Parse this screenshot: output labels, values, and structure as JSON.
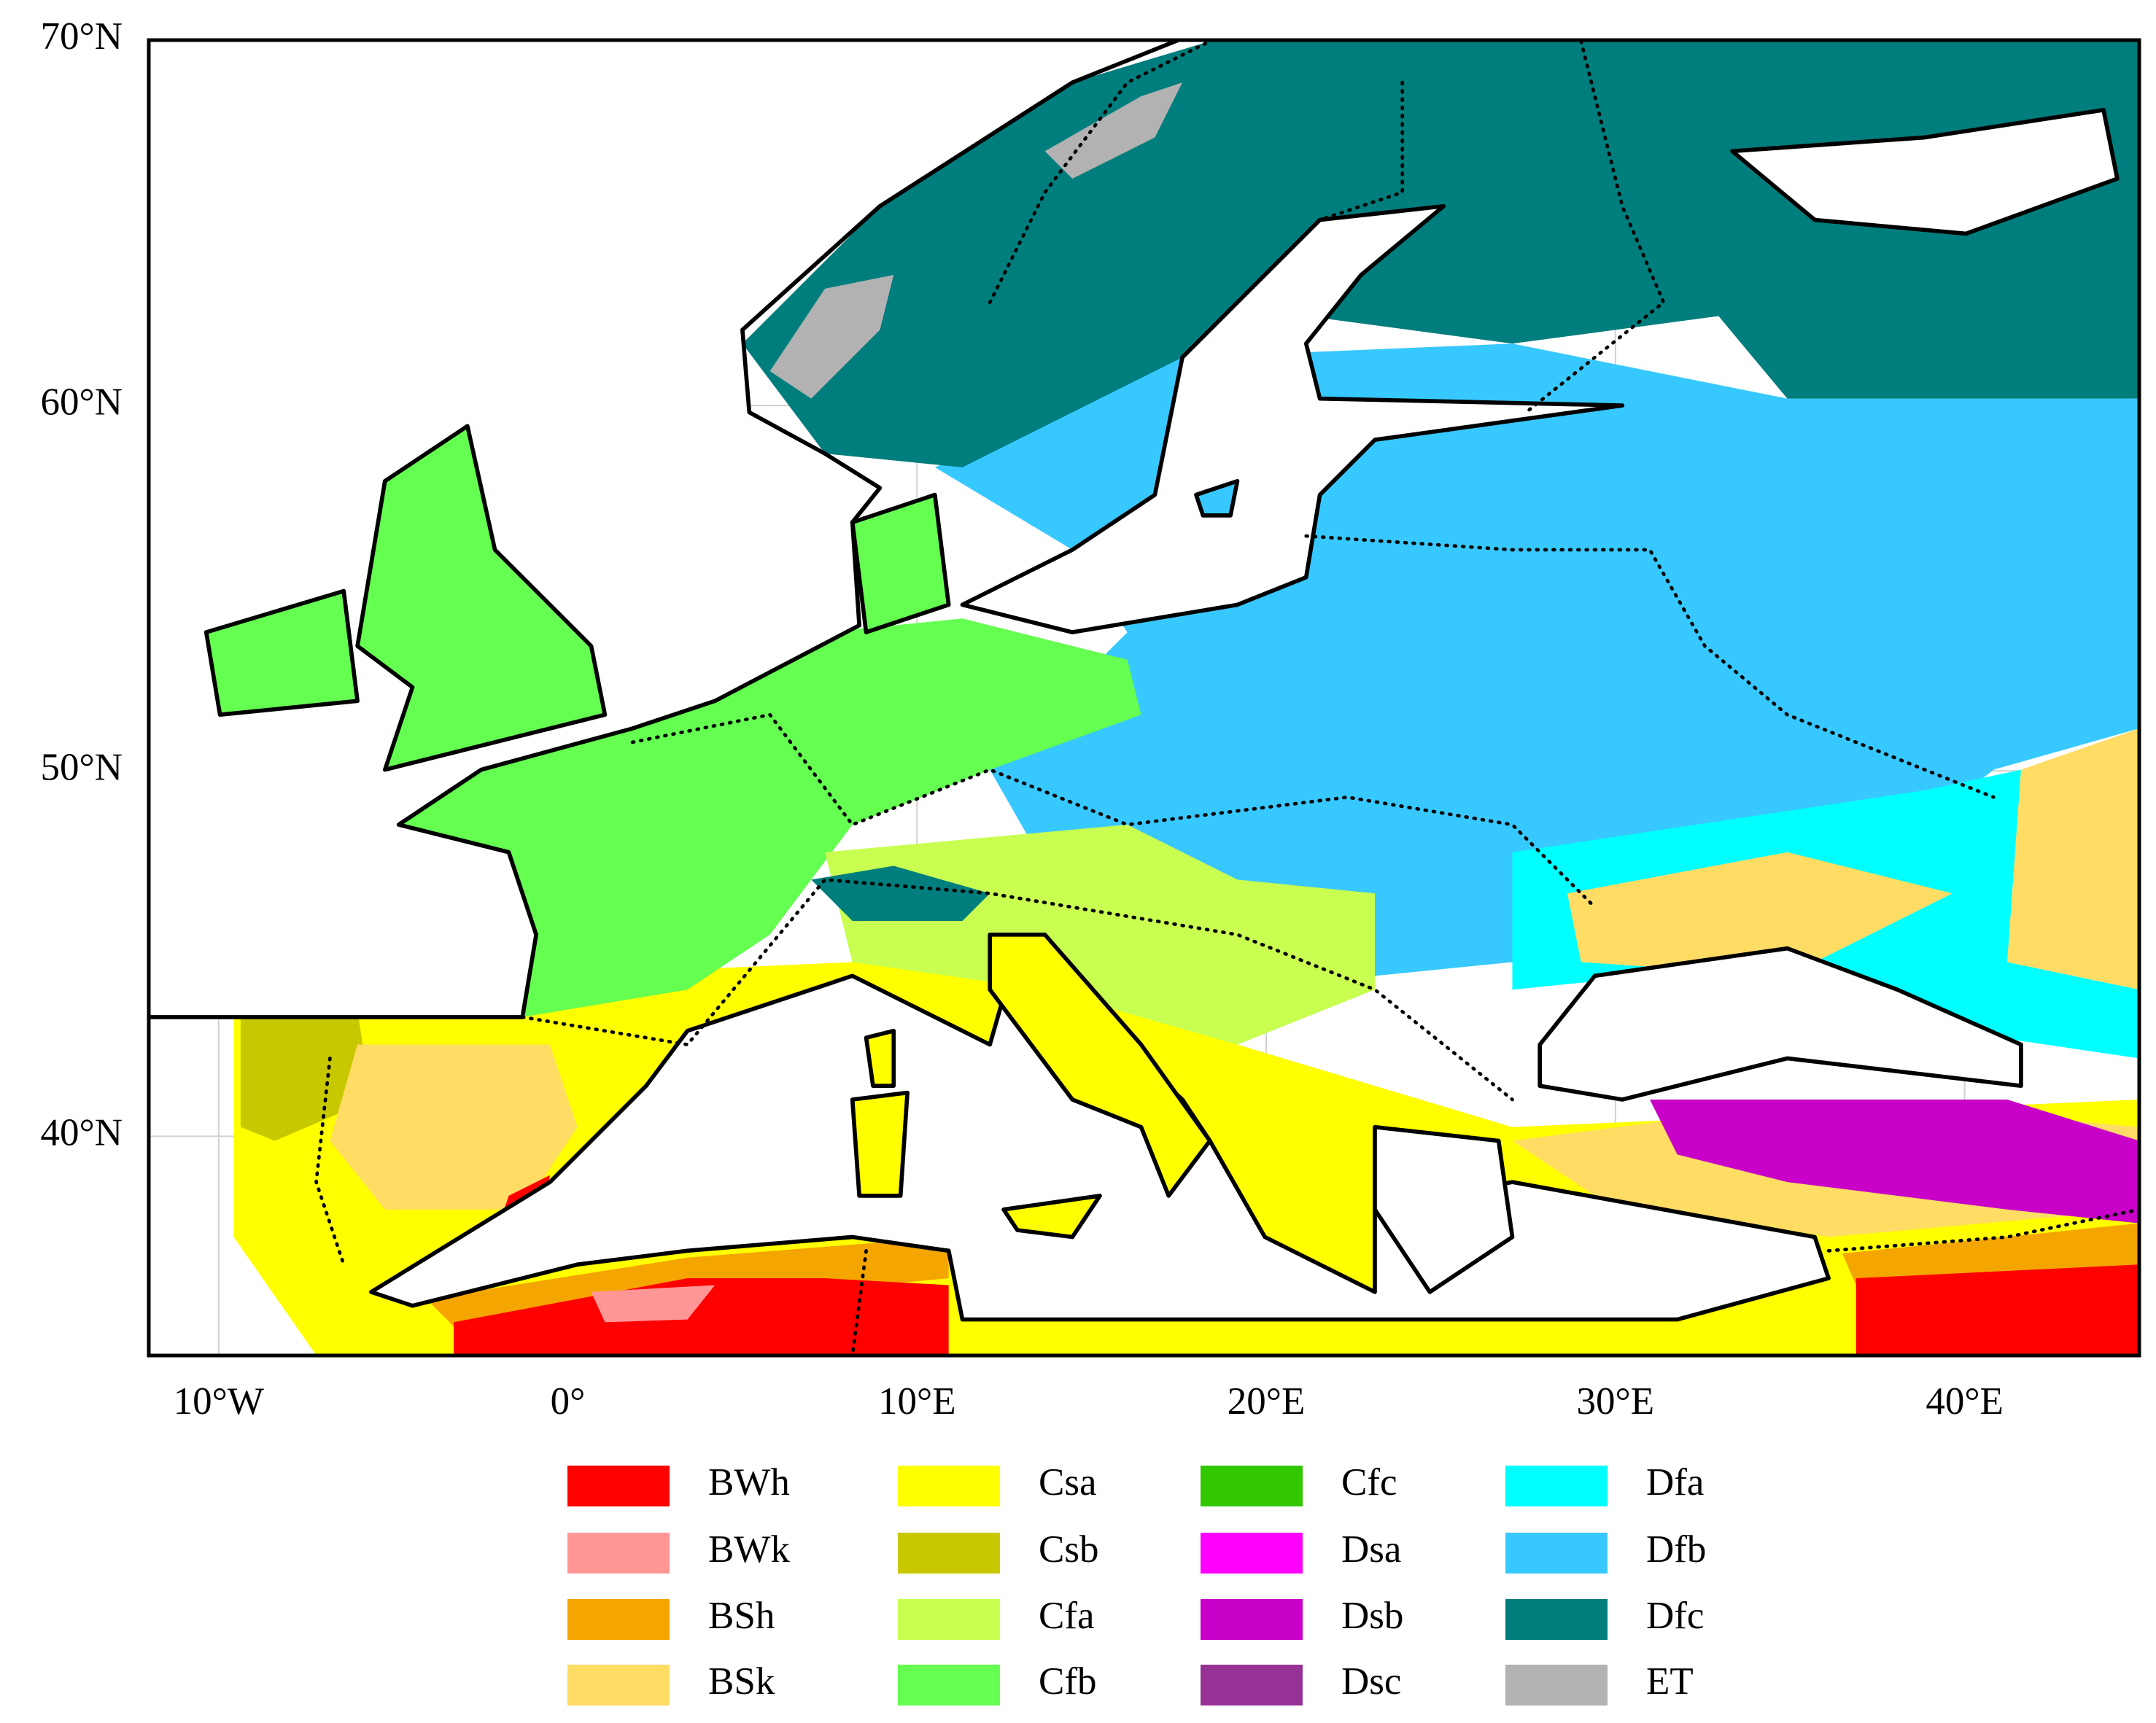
{
  "map": {
    "type": "map",
    "xlim": [
      -12,
      45
    ],
    "ylim": [
      34,
      70
    ],
    "xticks": [
      {
        "value": -10,
        "label": "10°W"
      },
      {
        "value": 0,
        "label": "0°"
      },
      {
        "value": 10,
        "label": "10°E"
      },
      {
        "value": 20,
        "label": "20°E"
      },
      {
        "value": 30,
        "label": "30°E"
      },
      {
        "value": 40,
        "label": "40°E"
      }
    ],
    "yticks": [
      {
        "value": 40,
        "label": "40°N"
      },
      {
        "value": 50,
        "label": "50°N"
      },
      {
        "value": 60,
        "label": "60°N"
      },
      {
        "value": 70,
        "label": "70°N"
      }
    ],
    "grid": true,
    "legend": [
      {
        "name": "BWh",
        "color": "#ff0000"
      },
      {
        "name": "BWk",
        "color": "#ff9696"
      },
      {
        "name": "BSh",
        "color": "#f5a500"
      },
      {
        "name": "BSk",
        "color": "#ffdc64"
      },
      {
        "name": "Csa",
        "color": "#ffff00"
      },
      {
        "name": "Csb",
        "color": "#c8c800"
      },
      {
        "name": "Cfa",
        "color": "#c8ff50"
      },
      {
        "name": "Cfb",
        "color": "#64ff50"
      },
      {
        "name": "Cfc",
        "color": "#32c800"
      },
      {
        "name": "Dsa",
        "color": "#ff00ff"
      },
      {
        "name": "Dsb",
        "color": "#c800c8"
      },
      {
        "name": "Dsc",
        "color": "#963296"
      },
      {
        "name": "Dfa",
        "color": "#00ffff"
      },
      {
        "name": "Dfb",
        "color": "#37c8ff"
      },
      {
        "name": "Dfc",
        "color": "#007d7d"
      },
      {
        "name": "ET",
        "color": "#b2b2b2"
      }
    ]
  }
}
